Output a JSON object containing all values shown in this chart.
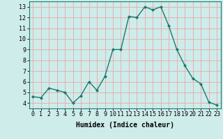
{
  "x": [
    0,
    1,
    2,
    3,
    4,
    5,
    6,
    7,
    8,
    9,
    10,
    11,
    12,
    13,
    14,
    15,
    16,
    17,
    18,
    19,
    20,
    21,
    22,
    23
  ],
  "y": [
    4.6,
    4.5,
    5.4,
    5.2,
    5.0,
    4.0,
    4.7,
    6.0,
    5.2,
    6.5,
    9.0,
    9.0,
    12.1,
    12.0,
    13.0,
    12.7,
    13.0,
    11.2,
    9.0,
    7.5,
    6.3,
    5.8,
    4.1,
    3.8
  ],
  "line_color": "#1a7a6e",
  "marker": "D",
  "marker_size": 2,
  "bg_color": "#ceecea",
  "grid_color": "#e8a8a8",
  "xlim": [
    -0.5,
    23.5
  ],
  "ylim": [
    3.5,
    13.5
  ],
  "yticks": [
    4,
    5,
    6,
    7,
    8,
    9,
    10,
    11,
    12,
    13
  ],
  "xticks": [
    0,
    1,
    2,
    3,
    4,
    5,
    6,
    7,
    8,
    9,
    10,
    11,
    12,
    13,
    14,
    15,
    16,
    17,
    18,
    19,
    20,
    21,
    22,
    23
  ],
  "xlabel": "Humidex (Indice chaleur)",
  "xlabel_fontsize": 7,
  "tick_fontsize": 6,
  "axis_color": "#1a7a6e",
  "linewidth": 1.0
}
